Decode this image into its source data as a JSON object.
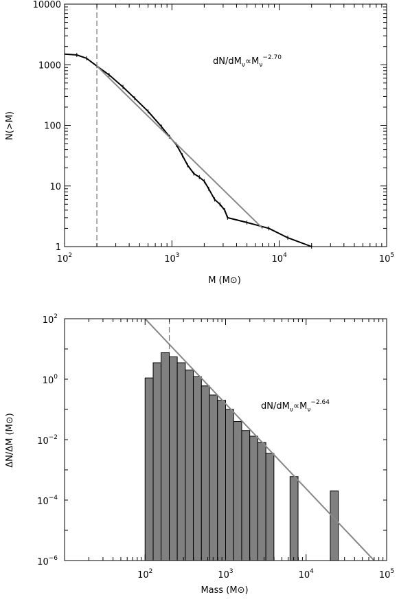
{
  "chart_data": [
    {
      "type": "line",
      "xscale": "log",
      "yscale": "log",
      "xlim": [
        100,
        100000
      ],
      "ylim": [
        1,
        10000
      ],
      "xlabel": "M (M⊙)",
      "ylabel": "N(>M)",
      "x_tick_base": "10",
      "x_tick_exponents": [
        "2",
        "3",
        "4",
        "5"
      ],
      "y_tick_labels": [
        "1",
        "10",
        "100",
        "1000",
        "10000"
      ],
      "y_tick_values": [
        1,
        10,
        100,
        1000,
        10000
      ],
      "grid": false,
      "annotation": {
        "main": "dN/dM",
        "sub": "ν",
        "mid": "∝M",
        "sub2": "ν",
        "power": "−2.70"
      },
      "cutoff_line": {
        "x": 200,
        "style": "dashed"
      },
      "series": [
        {
          "style": "stepped-data",
          "x": [
            100,
            130,
            160,
            200,
            260,
            350,
            450,
            600,
            800,
            950,
            1100,
            1250,
            1400,
            1600,
            1800,
            2000,
            2200,
            2500,
            2800,
            3100,
            3300,
            5000,
            8000,
            12000,
            20000
          ],
          "y": [
            1500,
            1450,
            1280,
            950,
            680,
            430,
            280,
            170,
            95,
            65,
            48,
            32,
            22,
            16,
            14,
            12,
            9,
            6,
            5,
            4,
            3,
            2.5,
            2,
            1.4,
            1
          ]
        },
        {
          "style": "power-law-fit",
          "x": [
            200,
            7000
          ],
          "y": [
            950,
            2
          ]
        }
      ]
    },
    {
      "type": "bar",
      "xscale": "log",
      "yscale": "log",
      "xlim": [
        10,
        100000
      ],
      "ylim": [
        1e-06,
        100
      ],
      "xlabel": "Mass (M⊙)",
      "ylabel": "ΔN/ΔM (M⊙)",
      "x_tick_base": "10",
      "x_tick_exponents": [
        "2",
        "3",
        "4",
        "5"
      ],
      "y_tick_base": "10",
      "y_tick_exponents": [
        "2",
        "0",
        "−2",
        "−4",
        "−6"
      ],
      "y_tick_values": [
        100,
        1,
        0.01,
        0.0001,
        1e-06
      ],
      "grid": false,
      "annotation": {
        "main": "dN/dM",
        "sub": "ν",
        "mid": "∝M",
        "sub2": "ν",
        "power": "−2.64"
      },
      "cutoff_line": {
        "x": 200,
        "style": "dashed"
      },
      "bins": [
        {
          "x0": 100,
          "x1": 126,
          "value": 1.1
        },
        {
          "x0": 126,
          "x1": 158,
          "value": 3.5
        },
        {
          "x0": 158,
          "x1": 200,
          "value": 7.5
        },
        {
          "x0": 200,
          "x1": 251,
          "value": 5.5
        },
        {
          "x0": 251,
          "x1": 316,
          "value": 3.5
        },
        {
          "x0": 316,
          "x1": 398,
          "value": 2.0
        },
        {
          "x0": 398,
          "x1": 501,
          "value": 1.2
        },
        {
          "x0": 501,
          "x1": 631,
          "value": 0.6
        },
        {
          "x0": 631,
          "x1": 794,
          "value": 0.3
        },
        {
          "x0": 794,
          "x1": 1000,
          "value": 0.2
        },
        {
          "x0": 1000,
          "x1": 1259,
          "value": 0.1
        },
        {
          "x0": 1259,
          "x1": 1585,
          "value": 0.04
        },
        {
          "x0": 1585,
          "x1": 1995,
          "value": 0.02
        },
        {
          "x0": 1995,
          "x1": 2512,
          "value": 0.013
        },
        {
          "x0": 2512,
          "x1": 3162,
          "value": 0.008
        },
        {
          "x0": 3162,
          "x1": 3981,
          "value": 0.0035
        },
        {
          "x0": 6310,
          "x1": 7943,
          "value": 0.0006
        },
        {
          "x0": 19953,
          "x1": 25119,
          "value": 0.0002
        }
      ],
      "fit_line": {
        "x": [
          100,
          70000
        ],
        "y": [
          100,
          1e-06
        ]
      }
    }
  ]
}
